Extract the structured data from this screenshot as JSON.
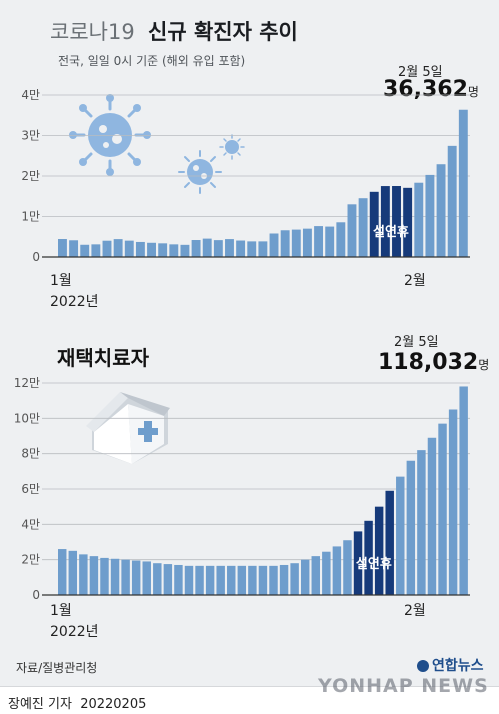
{
  "chart1": {
    "title_light": "코로나19",
    "title_bold": "신규 확진자 추이",
    "subtitle": "전국, 일일 0시 기준 (해외 유입 포함)",
    "latest_date": "2월 5일",
    "latest_value": "36,362",
    "unit": "명",
    "holiday_label": "설연휴",
    "x_start": "1월",
    "x_mid": "2월",
    "year": "2022년"
  },
  "chart2": {
    "title": "재택치료자",
    "latest_date": "2월 5일",
    "latest_value": "118,032",
    "unit": "명",
    "holiday_label": "설연휴",
    "x_start": "1월",
    "x_mid": "2월",
    "year": "2022년"
  },
  "footer": {
    "source": "자료/질병관리청",
    "reporter": "장예진 기자",
    "date_code": "20220205",
    "logo_text": "연합뉴스",
    "watermark": "YONHAP NEWS"
  },
  "colors": {
    "bar_light": "#6e9dcc",
    "bar_dark": "#163a7a",
    "grid": "#b8bcc0",
    "virus": "#8fb6e0"
  },
  "icons": [
    "virus-icon",
    "house-icon",
    "yonhap-logo-icon"
  ],
  "chart_data": [
    {
      "type": "bar",
      "title": "코로나19 신규 확진자 추이",
      "ylim": [
        0,
        40000
      ],
      "yticks": [
        {
          "value": 0,
          "label": "0"
        },
        {
          "value": 10000,
          "label": "1만"
        },
        {
          "value": 20000,
          "label": "2만"
        },
        {
          "value": 30000,
          "label": "3만"
        },
        {
          "value": 40000,
          "label": "4만"
        }
      ],
      "grid": true,
      "highlight_range": [
        28,
        31
      ],
      "values": [
        4441,
        4126,
        3021,
        3125,
        4023,
        4419,
        4039,
        3715,
        3511,
        3376,
        3124,
        3004,
        4194,
        4542,
        4167,
        4423,
        4070,
        3857,
        3858,
        5804,
        6601,
        6767,
        7000,
        7630,
        7513,
        8571,
        13009,
        14518,
        16096,
        17513,
        17528,
        17079,
        18342,
        20270,
        22907,
        27443,
        36362
      ]
    },
    {
      "type": "bar",
      "title": "재택치료자",
      "ylim": [
        0,
        120000
      ],
      "yticks": [
        {
          "value": 0,
          "label": "0"
        },
        {
          "value": 20000,
          "label": "2만"
        },
        {
          "value": 40000,
          "label": "4만"
        },
        {
          "value": 60000,
          "label": "6만"
        },
        {
          "value": 80000,
          "label": "8만"
        },
        {
          "value": 100000,
          "label": "10만"
        },
        {
          "value": 120000,
          "label": "12만"
        }
      ],
      "grid": true,
      "highlight_range": [
        28,
        31
      ],
      "values": [
        26000,
        25000,
        23000,
        22000,
        21000,
        20500,
        20000,
        19500,
        19000,
        18000,
        17500,
        17000,
        16500,
        16500,
        16500,
        16500,
        16500,
        16500,
        16500,
        16500,
        16500,
        17000,
        18000,
        20000,
        22000,
        24500,
        27500,
        31000,
        36000,
        42000,
        50000,
        59000,
        67000,
        76000,
        82000,
        89000,
        97000,
        105000,
        118032
      ]
    }
  ]
}
